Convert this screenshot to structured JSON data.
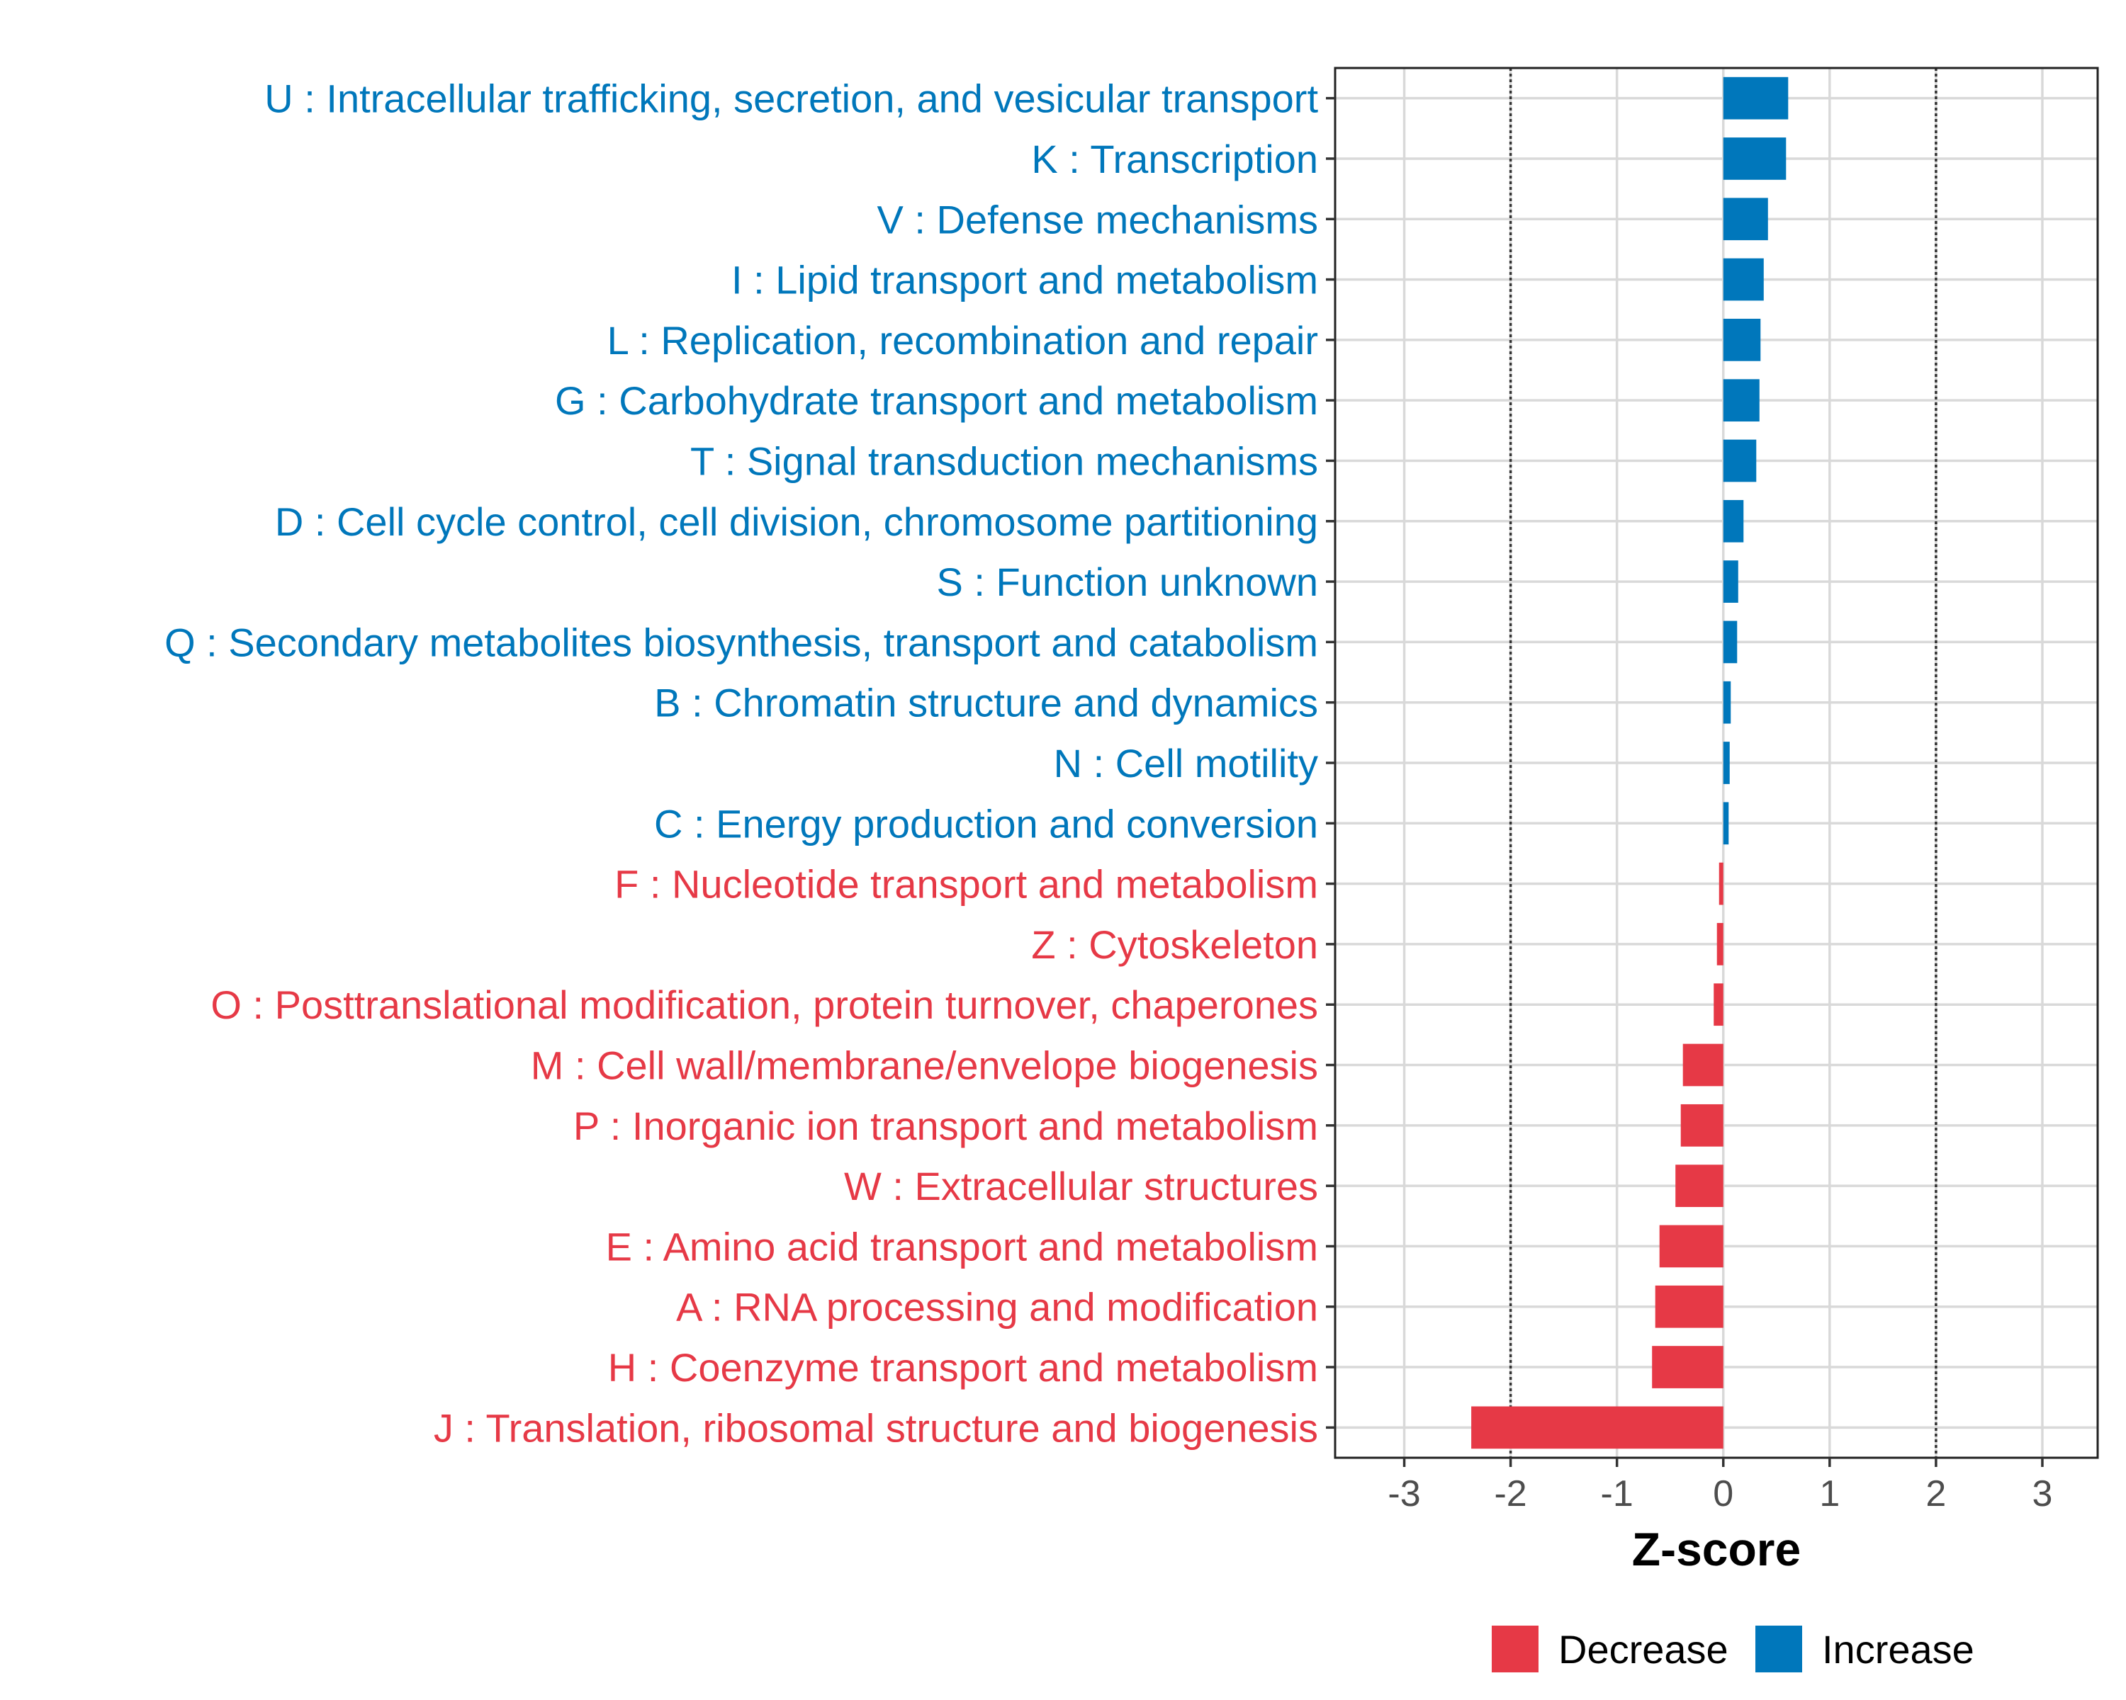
{
  "chart_data": {
    "type": "bar",
    "orientation": "horizontal",
    "title": "",
    "xlabel": "Z-score",
    "ylabel": "",
    "xlim": [
      -3.65,
      3.52
    ],
    "xticks": [
      -3,
      -2,
      -1,
      0,
      1,
      2,
      3
    ],
    "xtick_labels": [
      "-3",
      "-2",
      "-1",
      "0",
      "1",
      "2",
      "3"
    ],
    "reference_lines": [
      -2,
      2
    ],
    "grid": true,
    "legend_position": "bottom",
    "colors": {
      "Increase": "#0077bb",
      "Decrease": "#e63946"
    },
    "categories": [
      "U : Intracellular trafficking, secretion, and vesicular transport",
      "K : Transcription",
      "V : Defense mechanisms",
      "I : Lipid transport and metabolism",
      "L : Replication, recombination and repair",
      "G : Carbohydrate transport and metabolism",
      "T : Signal transduction mechanisms",
      "D : Cell cycle control, cell division, chromosome partitioning",
      "S : Function unknown",
      "Q : Secondary metabolites biosynthesis, transport and catabolism",
      "B : Chromatin structure and dynamics",
      "N : Cell motility",
      "C : Energy production and conversion",
      "F : Nucleotide transport and metabolism",
      "Z : Cytoskeleton",
      "O : Posttranslational modification, protein turnover, chaperones",
      "M : Cell wall/membrane/envelope biogenesis",
      "P : Inorganic ion transport and metabolism",
      "W : Extracellular structures",
      "E : Amino acid transport and metabolism",
      "A : RNA processing and modification",
      "H : Coenzyme transport and metabolism",
      "J : Translation, ribosomal structure and biogenesis"
    ],
    "values": [
      0.61,
      0.59,
      0.42,
      0.38,
      0.35,
      0.34,
      0.31,
      0.19,
      0.14,
      0.13,
      0.07,
      0.06,
      0.05,
      -0.04,
      -0.06,
      -0.09,
      -0.38,
      -0.4,
      -0.45,
      -0.6,
      -0.64,
      -0.67,
      -2.37
    ],
    "groups": [
      "Increase",
      "Increase",
      "Increase",
      "Increase",
      "Increase",
      "Increase",
      "Increase",
      "Increase",
      "Increase",
      "Increase",
      "Increase",
      "Increase",
      "Increase",
      "Decrease",
      "Decrease",
      "Decrease",
      "Decrease",
      "Decrease",
      "Decrease",
      "Decrease",
      "Decrease",
      "Decrease",
      "Decrease"
    ],
    "legend": [
      "Decrease",
      "Increase"
    ]
  }
}
